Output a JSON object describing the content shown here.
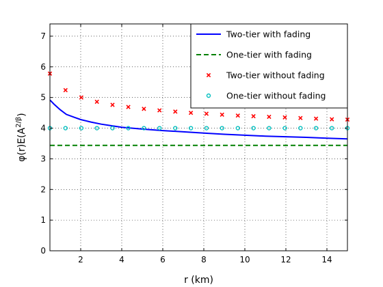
{
  "chart_data": {
    "type": "line",
    "title": "",
    "xlabel": "r (km)",
    "ylabel_parts": {
      "main": "φ(r)E(A",
      "sup": "2/β",
      "end": ")"
    },
    "xlim": [
      0.5,
      15
    ],
    "ylim": [
      0,
      7.4
    ],
    "xticks": [
      2,
      4,
      6,
      8,
      10,
      12,
      14
    ],
    "yticks": [
      0,
      1,
      2,
      3,
      4,
      5,
      6,
      7
    ],
    "grid": true,
    "legend_position": "top-right",
    "series": [
      {
        "name": "Two-tier with fading",
        "style": "line",
        "color": "#0000ff",
        "x": [
          0.5,
          0.7,
          1.0,
          1.3,
          1.7,
          2.0,
          2.5,
          3.0,
          3.5,
          4.0,
          5.0,
          6.0,
          7.0,
          8.0,
          9.0,
          10.0,
          11.0,
          12.0,
          13.0,
          14.0,
          15.0
        ],
        "y": [
          4.92,
          4.78,
          4.6,
          4.45,
          4.35,
          4.28,
          4.2,
          4.13,
          4.08,
          4.03,
          3.97,
          3.92,
          3.88,
          3.84,
          3.8,
          3.77,
          3.74,
          3.72,
          3.7,
          3.67,
          3.65
        ]
      },
      {
        "name": "One-tier with fading",
        "style": "dashed",
        "color": "#008000",
        "x": [
          0.5,
          15
        ],
        "y": [
          3.44,
          3.44
        ]
      },
      {
        "name": "Two-tier without fading",
        "style": "x-marker",
        "color": "#ff0000",
        "x": [
          0.5,
          1.26,
          2.03,
          2.79,
          3.55,
          4.32,
          5.08,
          5.84,
          6.61,
          7.37,
          8.13,
          8.89,
          9.66,
          10.42,
          11.18,
          11.95,
          12.71,
          13.47,
          14.24,
          15.0
        ],
        "y": [
          5.78,
          5.24,
          5.0,
          4.86,
          4.76,
          4.69,
          4.63,
          4.58,
          4.54,
          4.5,
          4.47,
          4.44,
          4.41,
          4.39,
          4.37,
          4.35,
          4.33,
          4.31,
          4.29,
          4.28
        ]
      },
      {
        "name": "One-tier without fading",
        "style": "o-marker",
        "color": "#00bfbf",
        "x": [
          0.5,
          1.26,
          2.03,
          2.79,
          3.55,
          4.32,
          5.08,
          5.84,
          6.61,
          7.37,
          8.13,
          8.89,
          9.66,
          10.42,
          11.18,
          11.95,
          12.71,
          13.47,
          14.24,
          15.0
        ],
        "y": [
          4.0,
          4.0,
          4.0,
          4.0,
          4.0,
          4.0,
          4.0,
          4.0,
          4.0,
          4.0,
          4.0,
          4.0,
          4.0,
          4.0,
          4.0,
          4.0,
          4.0,
          4.0,
          4.0,
          4.0
        ]
      }
    ]
  }
}
